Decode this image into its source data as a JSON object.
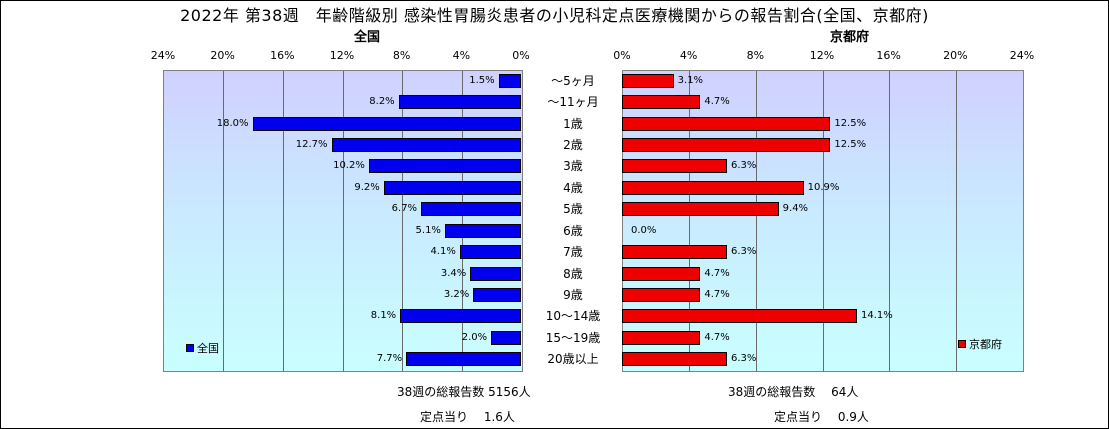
{
  "title": "2022年 第38週　年齢階級別 感染性胃腸炎患者の小児科定点医療機関からの報告割合(全国、京都府)",
  "chart_data": {
    "type": "bar",
    "orientation": "horizontal",
    "categories": [
      "～5ヶ月",
      "～11ヶ月",
      "1歳",
      "2歳",
      "3歳",
      "4歳",
      "5歳",
      "6歳",
      "7歳",
      "8歳",
      "9歳",
      "10～14歳",
      "15～19歳",
      "20歳以上"
    ],
    "panels": [
      {
        "title": "全国",
        "legend": "全国",
        "direction": "leftward",
        "color": "#0000ee",
        "xlim": [
          0,
          24
        ],
        "ticks": [
          "24%",
          "20%",
          "16%",
          "12%",
          "8%",
          "4%",
          "0%"
        ],
        "values": [
          1.5,
          8.2,
          18.0,
          12.7,
          10.2,
          9.2,
          6.7,
          5.1,
          4.1,
          3.4,
          3.2,
          8.1,
          2.0,
          7.7
        ],
        "labels": [
          "1.5%",
          "8.2%",
          "18.0%",
          "12.7%",
          "10.2%",
          "9.2%",
          "6.7%",
          "5.1%",
          "4.1%",
          "3.4%",
          "3.2%",
          "8.1%",
          "2.0%",
          "7.7%"
        ]
      },
      {
        "title": "京都府",
        "legend": "京都府",
        "direction": "rightward",
        "color": "#ee0000",
        "xlim": [
          0,
          24
        ],
        "ticks": [
          "0%",
          "4%",
          "8%",
          "12%",
          "16%",
          "20%",
          "24%"
        ],
        "values": [
          3.1,
          4.7,
          12.5,
          12.5,
          6.3,
          10.9,
          9.4,
          0.0,
          6.3,
          4.7,
          4.7,
          14.1,
          4.7,
          6.3
        ],
        "labels": [
          "3.1%",
          "4.7%",
          "12.5%",
          "12.5%",
          "6.3%",
          "10.9%",
          "9.4%",
          "0.0%",
          "6.3%",
          "4.7%",
          "4.7%",
          "14.1%",
          "4.7%",
          "6.3%"
        ]
      }
    ],
    "grid": true
  },
  "footer": {
    "left_total": "38週の総報告数 5156人",
    "left_per_site": "定点当り　 1.6人",
    "right_total": "38週の総報告数　 64人",
    "right_per_site": "定点当り　 0.9人"
  }
}
